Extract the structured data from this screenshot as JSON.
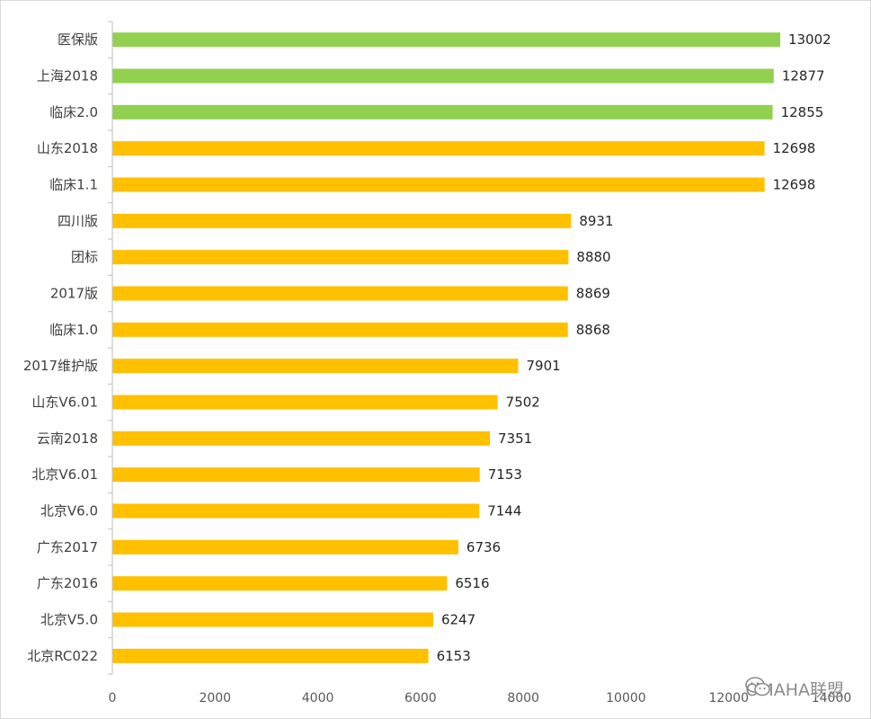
{
  "chart_data": {
    "type": "bar",
    "orientation": "horizontal",
    "categories": [
      "医保版",
      "上海2018",
      "临床2.0",
      "山东2018",
      "临床1.1",
      "四川版",
      "团标",
      "2017版",
      "临床1.0",
      "2017维护版",
      "山东V6.01",
      "云南2018",
      "北京V6.01",
      "北京V6.0",
      "广东2017",
      "广东2016",
      "北京V5.0",
      "北京RC022"
    ],
    "values": [
      13002,
      12877,
      12855,
      12698,
      12698,
      8931,
      8880,
      8869,
      8868,
      7901,
      7502,
      7351,
      7153,
      7144,
      6736,
      6516,
      6247,
      6153
    ],
    "bar_colors": [
      "#92d050",
      "#92d050",
      "#92d050",
      "#ffc000",
      "#ffc000",
      "#ffc000",
      "#ffc000",
      "#ffc000",
      "#ffc000",
      "#ffc000",
      "#ffc000",
      "#ffc000",
      "#ffc000",
      "#ffc000",
      "#ffc000",
      "#ffc000",
      "#ffc000",
      "#ffc000"
    ],
    "xlim": [
      0,
      14000
    ],
    "xticks": [
      0,
      2000,
      4000,
      6000,
      8000,
      10000,
      12000,
      14000
    ],
    "data_labels": true,
    "grid": false
  },
  "watermark": {
    "text": "OMAHA联盟",
    "icon": "wechat-icon"
  }
}
